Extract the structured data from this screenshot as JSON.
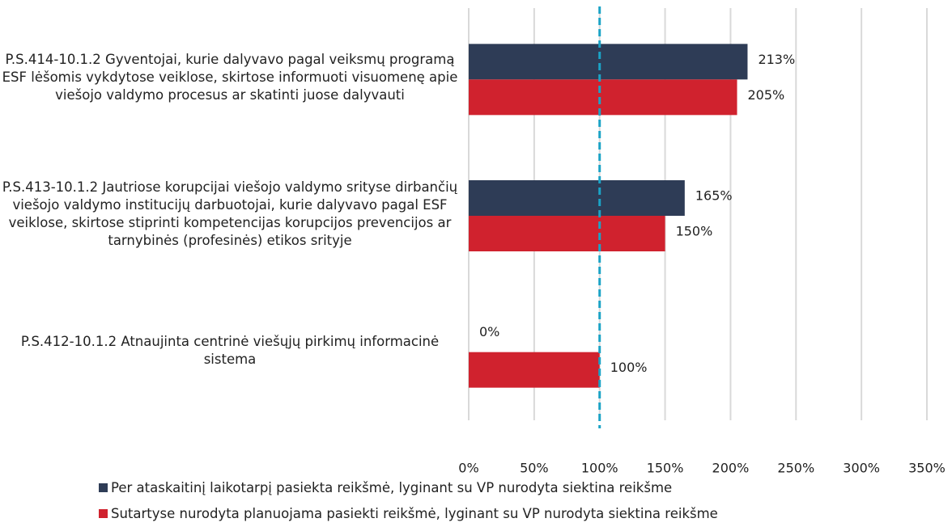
{
  "chart_data": {
    "type": "bar",
    "orientation": "horizontal",
    "categories": [
      "P.S.414-10.1.2 Gyventojai, kurie dalyvavo pagal veiksmų programą ESF lėšomis vykdytose veiklose, skirtose informuoti visuomenę apie viešojo valdymo procesus ar skatinti juose dalyvauti",
      "P.S.413-10.1.2 Jautriose korupcijai viešojo valdymo srityse dirbančių viešojo valdymo institucijų darbuotojai, kurie dalyvavo pagal ESF veiklose, skirtose stiprinti kompetencijas korupcijos prevencijos ar tarnybinės (profesinės) etikos srityje",
      "P.S.412-10.1.2 Atnaujinta centrinė viešųjų pirkimų informacinė sistema"
    ],
    "series": [
      {
        "name": "Per ataskaitinį laikotarpį pasiekta reikšmė, lyginant su VP nurodyta siektina reikšme",
        "color": "#2e3c56",
        "values": [
          213,
          165,
          0
        ],
        "value_labels": [
          "213%",
          "165%",
          "0%"
        ]
      },
      {
        "name": "Sutartyse nurodyta planuojama pasiekti reikšmė, lyginant su VP nurodyta siektina reikšme",
        "color": "#d0222e",
        "values": [
          205,
          150,
          100
        ],
        "value_labels": [
          "205%",
          "150%",
          "100%"
        ]
      }
    ],
    "xlim": [
      0,
      350
    ],
    "xticks": [
      {
        "value": 0,
        "label": "0%"
      },
      {
        "value": 50,
        "label": "50%"
      },
      {
        "value": 100,
        "label": "100%"
      },
      {
        "value": 150,
        "label": "150%"
      },
      {
        "value": 200,
        "label": "200%"
      },
      {
        "value": 250,
        "label": "250%"
      },
      {
        "value": 300,
        "label": "300%"
      },
      {
        "value": 350,
        "label": "350%"
      }
    ],
    "grid": true,
    "reference_line": {
      "value": 100,
      "color": "#1ba3c6"
    },
    "legend": "bottom"
  }
}
